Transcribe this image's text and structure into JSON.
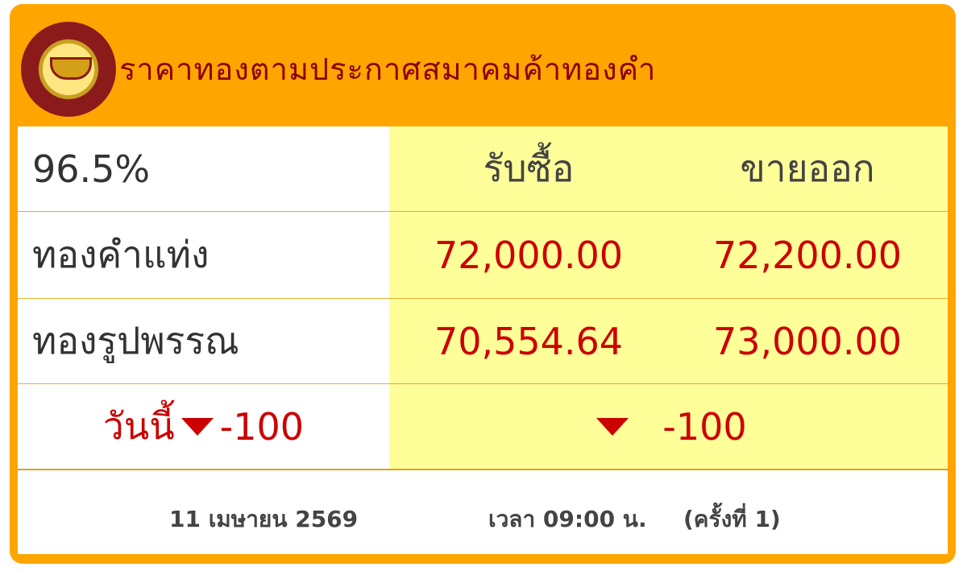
{
  "header": {
    "title": "ราคาทองตามประกาศสมาคมค้าทองคำ",
    "logo": "gold-traders-association-logo"
  },
  "table": {
    "purity": "96.5%",
    "columns": [
      "รับซื้อ",
      "ขายออก"
    ],
    "rows": [
      {
        "label": "ทองคำแท่ง",
        "buy": "72,000.00",
        "sell": "72,200.00"
      },
      {
        "label": "ทองรูปพรรณ",
        "buy": "70,554.64",
        "sell": "73,000.00"
      }
    ],
    "change": {
      "label": "วันนี้",
      "direction": "down",
      "today": "-100",
      "right": "-100"
    }
  },
  "footer": {
    "date": "11 เมษายน 2569",
    "time": "เวลา 09:00 น.",
    "round": "(ครั้งที่ 1)"
  },
  "colors": {
    "header": "#FFA500",
    "title": "#8B0000",
    "price": "#CC0000",
    "highlight": "#FFFF99"
  }
}
